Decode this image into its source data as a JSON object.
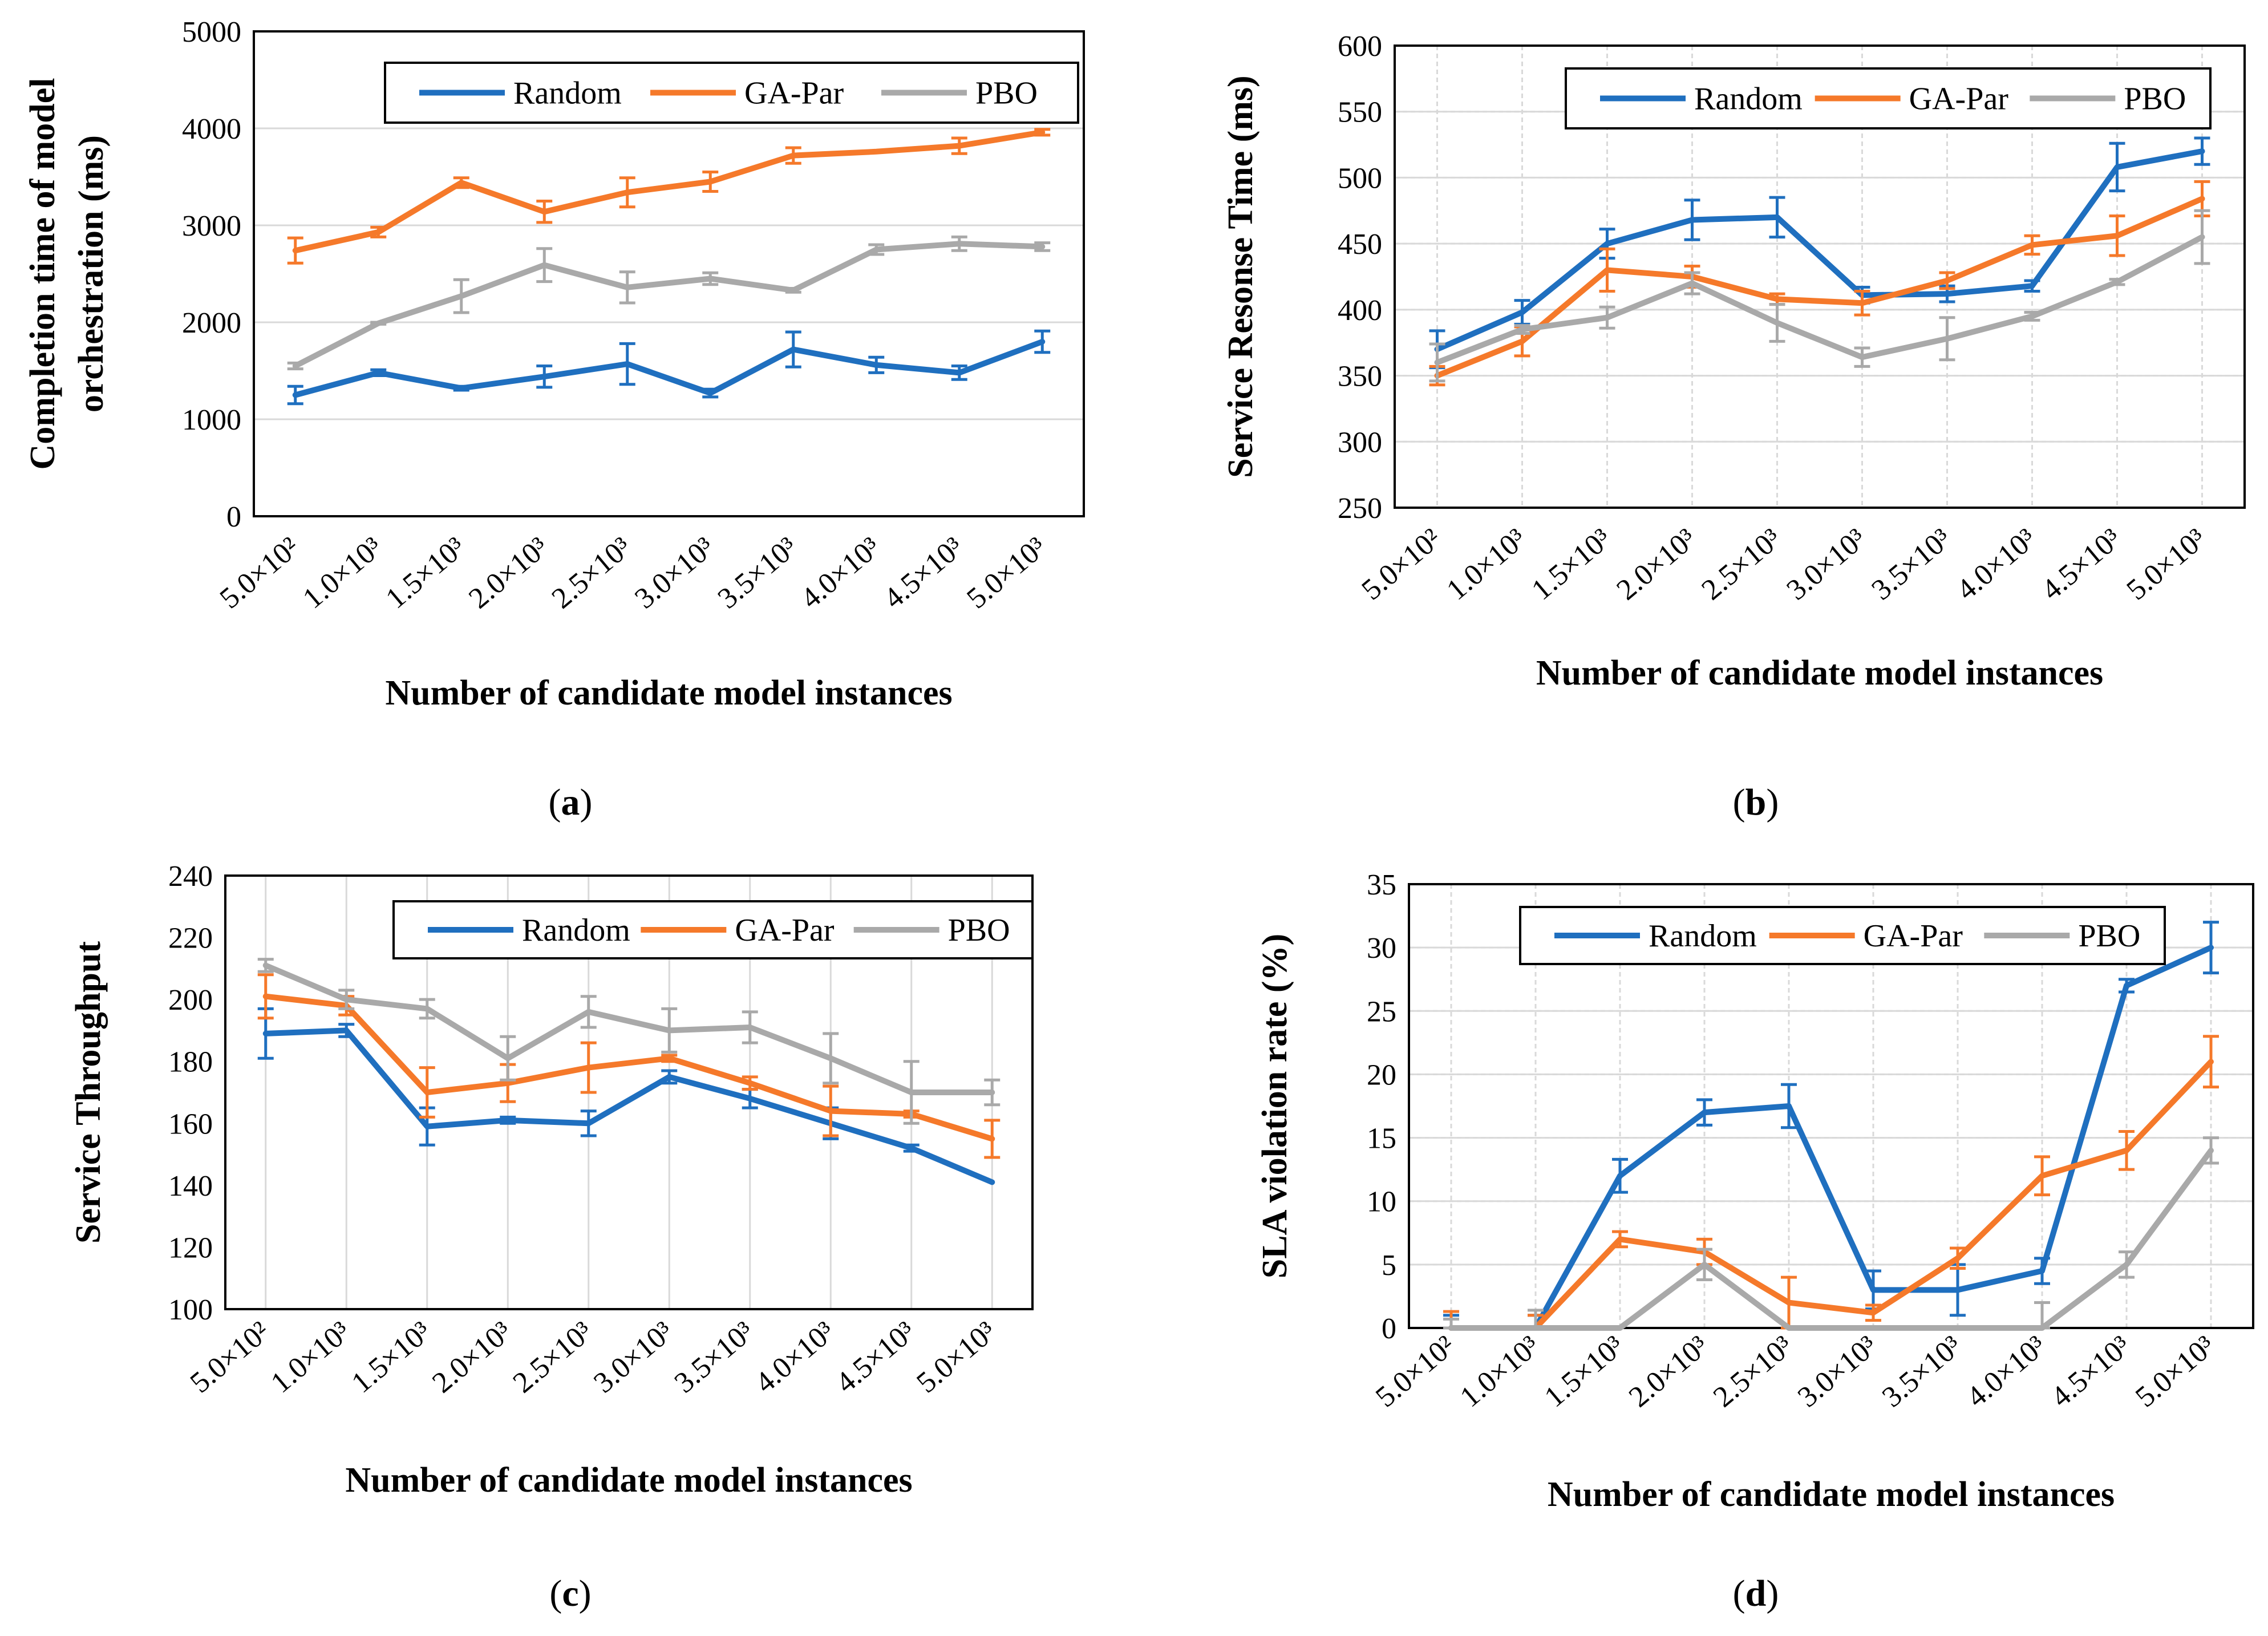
{
  "colors": {
    "Random": "#1f6fbf",
    "GA-Par": "#f5792a",
    "PBO": "#a9a9a9",
    "grid": "#d9d9d9",
    "frame": "#000000"
  },
  "chart_data": [
    {
      "panel": "a",
      "type": "line",
      "title": "",
      "xlabel": "Number of candidate model instances",
      "ylabel": "Completion time of model orchestration (ms)",
      "ylabel_lines": [
        "Completion time of model",
        "orchestration (ms)"
      ],
      "x": [
        "5.0×10²",
        "1.0×10³",
        "1.5×10³",
        "2.0×10³",
        "2.5×10³",
        "3.0×10³",
        "3.5×10³",
        "4.0×10³",
        "4.5×10³",
        "5.0×10³"
      ],
      "ylim": [
        0,
        5000
      ],
      "yticks": [
        0,
        1000,
        2000,
        3000,
        4000,
        5000
      ],
      "grid": "horizontal",
      "legend_position": "top-right",
      "series": [
        {
          "name": "Random",
          "values": [
            1250,
            1480,
            1320,
            1440,
            1570,
            1270,
            1720,
            1560,
            1480,
            1800
          ],
          "errors": [
            90,
            30,
            20,
            110,
            210,
            40,
            180,
            80,
            70,
            110
          ]
        },
        {
          "name": "GA-Par",
          "values": [
            2740,
            2930,
            3440,
            3140,
            3340,
            3450,
            3720,
            3760,
            3820,
            3960
          ],
          "errors": [
            130,
            50,
            50,
            110,
            150,
            100,
            80,
            0,
            80,
            30
          ]
        },
        {
          "name": "PBO",
          "values": [
            1550,
            1990,
            2270,
            2590,
            2360,
            2450,
            2330,
            2750,
            2810,
            2780
          ],
          "errors": [
            30,
            10,
            170,
            170,
            160,
            60,
            20,
            50,
            70,
            40
          ]
        }
      ]
    },
    {
      "panel": "b",
      "type": "line",
      "title": "",
      "xlabel": "Number of candidate model instances",
      "ylabel": "Service Resonse Time (ms)",
      "ylabel_lines": [
        "Service Resonse Time (ms)"
      ],
      "x": [
        "5.0×10²",
        "1.0×10³",
        "1.5×10³",
        "2.0×10³",
        "2.5×10³",
        "3.0×10³",
        "3.5×10³",
        "4.0×10³",
        "4.5×10³",
        "5.0×10³"
      ],
      "ylim": [
        250,
        600
      ],
      "yticks": [
        250,
        300,
        350,
        400,
        450,
        500,
        550,
        600
      ],
      "grid": "both",
      "legend_position": "top-right",
      "series": [
        {
          "name": "Random",
          "values": [
            370,
            398,
            450,
            468,
            470,
            411,
            412,
            418,
            508,
            520
          ],
          "errors": [
            14,
            9,
            11,
            15,
            15,
            6,
            6,
            4,
            18,
            10
          ]
        },
        {
          "name": "GA-Par",
          "values": [
            350,
            376,
            430,
            425,
            408,
            405,
            422,
            449,
            456,
            484
          ],
          "errors": [
            7,
            11,
            16,
            8,
            4,
            9,
            6,
            7,
            15,
            13
          ]
        },
        {
          "name": "PBO",
          "values": [
            360,
            385,
            394,
            420,
            390,
            364,
            378,
            395,
            421,
            455
          ],
          "errors": [
            14,
            3,
            8,
            8,
            14,
            7,
            16,
            3,
            2,
            20
          ]
        }
      ]
    },
    {
      "panel": "c",
      "type": "line",
      "title": "",
      "xlabel": "Number of candidate model instances",
      "ylabel": "Service Throughput",
      "ylabel_lines": [
        "Service Throughput"
      ],
      "x": [
        "5.0×10²",
        "1.0×10³",
        "1.5×10³",
        "2.0×10³",
        "2.5×10³",
        "3.0×10³",
        "3.5×10³",
        "4.0×10³",
        "4.5×10³",
        "5.0×10³"
      ],
      "ylim": [
        100,
        240
      ],
      "yticks": [
        100,
        120,
        140,
        160,
        180,
        200,
        220,
        240
      ],
      "grid": "vertical",
      "legend_position": "top-right",
      "series": [
        {
          "name": "Random",
          "values": [
            189,
            190,
            159,
            161,
            160,
            175,
            168,
            160,
            152,
            141
          ],
          "errors": [
            8,
            2,
            6,
            1,
            4,
            2,
            3,
            5,
            1,
            0
          ]
        },
        {
          "name": "GA-Par",
          "values": [
            201,
            198,
            170,
            173,
            178,
            181,
            173,
            164,
            163,
            155
          ],
          "errors": [
            7,
            3,
            8,
            6,
            8,
            1,
            2,
            8,
            1,
            6
          ]
        },
        {
          "name": "PBO",
          "values": [
            211,
            200,
            197,
            181,
            196,
            190,
            191,
            181,
            170,
            170
          ],
          "errors": [
            2,
            3,
            3,
            7,
            5,
            7,
            5,
            8,
            10,
            4
          ]
        }
      ]
    },
    {
      "panel": "d",
      "type": "line",
      "title": "",
      "xlabel": "Number of candidate model instances",
      "ylabel": "SLA violation rate (%)",
      "ylabel_lines": [
        "SLA violation rate (%)"
      ],
      "x": [
        "5.0×10²",
        "1.0×10³",
        "1.5×10³",
        "2.0×10³",
        "2.5×10³",
        "3.0×10³",
        "3.5×10³",
        "4.0×10³",
        "4.5×10³",
        "5.0×10³"
      ],
      "ylim": [
        0,
        35
      ],
      "yticks": [
        0,
        5,
        10,
        15,
        20,
        25,
        30,
        35
      ],
      "grid": "both",
      "legend_position": "top-right",
      "series": [
        {
          "name": "Random",
          "values": [
            0,
            0,
            12,
            17,
            17.5,
            3,
            3,
            4.5,
            27,
            30
          ],
          "errors": [
            1,
            1,
            1.3,
            1,
            1.7,
            1.5,
            2,
            1,
            0.5,
            2
          ]
        },
        {
          "name": "GA-Par",
          "values": [
            0,
            0,
            7,
            6,
            2,
            1.2,
            5.5,
            12,
            14,
            21
          ],
          "errors": [
            1.3,
            1,
            0.6,
            1,
            2,
            0.6,
            0.8,
            1.5,
            1.5,
            2
          ]
        },
        {
          "name": "PBO",
          "values": [
            0,
            0,
            0,
            5,
            0,
            0,
            0,
            0,
            5,
            14
          ],
          "errors": [
            0.7,
            1.4,
            0,
            1.2,
            0,
            0,
            0,
            2,
            1,
            1
          ]
        }
      ]
    }
  ],
  "panel_labels": [
    "a",
    "b",
    "c",
    "d"
  ]
}
